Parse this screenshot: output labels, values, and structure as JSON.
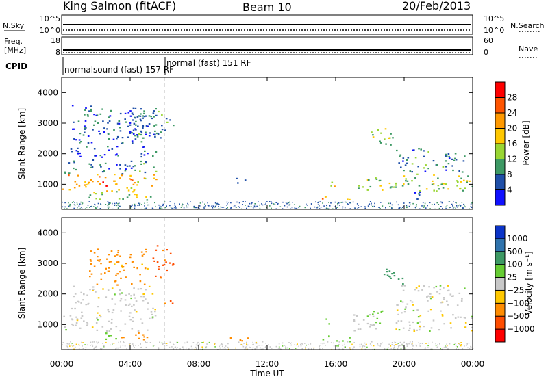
{
  "header": {
    "station": "King Salmon (fitACF)",
    "beam": "Beam 10",
    "date": "20/Feb/2013"
  },
  "status_panels": {
    "nsky": {
      "label": "N.Sky",
      "ticks": [
        "10^5",
        "10^0"
      ],
      "right_label": "N.Search",
      "right_ticks": [
        "10^5",
        "10^0"
      ]
    },
    "freq": {
      "label_line1": "Freq.",
      "label_line2": "[MHz]",
      "ticks": [
        "18",
        "8"
      ],
      "right_label": "Nave",
      "right_ticks": [
        "60",
        "0"
      ]
    },
    "cpid": {
      "label": "CPID",
      "programs": [
        {
          "name": "normalsound (fast) 157 RF",
          "start_hour": 0
        },
        {
          "name": "normal (fast) 151 RF",
          "start_hour": 6
        }
      ]
    }
  },
  "colorbars": {
    "power": {
      "label": "Power [dB]",
      "ticks": [
        "28",
        "24",
        "20",
        "16",
        "12",
        "8",
        "4"
      ],
      "colors": [
        "#ff0000",
        "#ff5500",
        "#ff9900",
        "#ffc800",
        "#99d633",
        "#3d9964",
        "#1f4fa8",
        "#1010ff"
      ]
    },
    "velocity": {
      "label": "Velocity [m s⁻¹]",
      "ticks": [
        "1000",
        "500",
        "100",
        "25",
        "−25",
        "−100",
        "−500",
        "−1000"
      ],
      "colors": [
        "#0b34c8",
        "#2f73ad",
        "#3d9964",
        "#66cc33",
        "#c8c8c8",
        "#ffc800",
        "#ff8c00",
        "#ff4d00",
        "#ff0000"
      ]
    }
  },
  "chart_data": [
    {
      "type": "heatmap",
      "title": "Power",
      "xlabel": "Time UT",
      "ylabel": "Slant Range [km]",
      "xlim": [
        0,
        24
      ],
      "ylim": [
        180,
        4500
      ],
      "x_ticks": [
        "00:00",
        "04:00",
        "08:00",
        "12:00",
        "16:00",
        "20:00",
        "00:00"
      ],
      "y_ticks": [
        1000,
        2000,
        3000,
        4000
      ],
      "colorbar": "power",
      "regions": [
        {
          "t0": 0.0,
          "t1": 5.6,
          "r0": 800,
          "r1": 1350,
          "value": 20
        },
        {
          "t0": 0.0,
          "t1": 5.6,
          "r0": 1350,
          "r1": 1750,
          "value": 8
        },
        {
          "t0": 0.5,
          "t1": 5.5,
          "r0": 1750,
          "r1": 3600,
          "value": 6
        },
        {
          "t0": 2.0,
          "t1": 3.3,
          "r0": 950,
          "r1": 1150,
          "value": 26
        },
        {
          "t0": 1.5,
          "t1": 5.5,
          "r0": 500,
          "r1": 800,
          "value": 14
        },
        {
          "t0": 4.0,
          "t1": 6.5,
          "r0": 2500,
          "r1": 3500,
          "value": 8
        },
        {
          "t0": 9.8,
          "t1": 10.8,
          "r0": 1050,
          "r1": 1250,
          "value": 6
        },
        {
          "t0": 15.3,
          "t1": 16.0,
          "r0": 950,
          "r1": 1200,
          "value": 18
        },
        {
          "t0": 15.0,
          "t1": 16.8,
          "r0": 480,
          "r1": 650,
          "value": 20
        },
        {
          "t0": 18.0,
          "t1": 19.3,
          "r0": 2200,
          "r1": 2900,
          "value": 12
        },
        {
          "t0": 17.0,
          "t1": 24.0,
          "r0": 800,
          "r1": 1350,
          "value": 14
        },
        {
          "t0": 19.5,
          "t1": 23.5,
          "r0": 1400,
          "r1": 2200,
          "value": 8
        },
        {
          "t0": 20.5,
          "t1": 21.5,
          "r0": 500,
          "r1": 800,
          "value": 6
        }
      ]
    },
    {
      "type": "heatmap",
      "title": "Velocity",
      "xlabel": "Time UT",
      "ylabel": "Slant Range [km]",
      "xlim": [
        0,
        24
      ],
      "ylim": [
        180,
        4500
      ],
      "x_ticks": [
        "00:00",
        "04:00",
        "08:00",
        "12:00",
        "16:00",
        "20:00",
        "00:00"
      ],
      "y_ticks": [
        1000,
        2000,
        3000,
        4000
      ],
      "colorbar": "velocity",
      "regions": [
        {
          "t0": 0.0,
          "t1": 5.6,
          "r0": 800,
          "r1": 1350,
          "value": 0
        },
        {
          "t0": 0.5,
          "t1": 5.5,
          "r0": 1400,
          "r1": 2300,
          "value": 0
        },
        {
          "t0": 1.5,
          "t1": 5.0,
          "r0": 2300,
          "r1": 3500,
          "value": -150
        },
        {
          "t0": 5.3,
          "t1": 6.5,
          "r0": 2500,
          "r1": 3600,
          "value": -600
        },
        {
          "t0": 6.0,
          "t1": 6.8,
          "r0": 1550,
          "r1": 1800,
          "value": -400
        },
        {
          "t0": 2.0,
          "t1": 3.2,
          "r0": 500,
          "r1": 750,
          "value": 60
        },
        {
          "t0": 3.3,
          "t1": 5.2,
          "r0": 500,
          "r1": 780,
          "value": -150
        },
        {
          "t0": 9.8,
          "t1": 11.0,
          "r0": 480,
          "r1": 700,
          "value": -300
        },
        {
          "t0": 15.4,
          "t1": 16.0,
          "r0": 950,
          "r1": 1200,
          "value": 60
        },
        {
          "t0": 15.0,
          "t1": 17.0,
          "r0": 450,
          "r1": 650,
          "value": 60
        },
        {
          "t0": 18.0,
          "t1": 18.7,
          "r0": 700,
          "r1": 1500,
          "value": 60
        },
        {
          "t0": 18.5,
          "t1": 20.0,
          "r0": 2300,
          "r1": 2900,
          "value": 300
        },
        {
          "t0": 17.0,
          "t1": 24.0,
          "r0": 800,
          "r1": 1350,
          "value": 0
        },
        {
          "t0": 19.5,
          "t1": 23.5,
          "r0": 1400,
          "r1": 2300,
          "value": 0
        }
      ]
    }
  ]
}
